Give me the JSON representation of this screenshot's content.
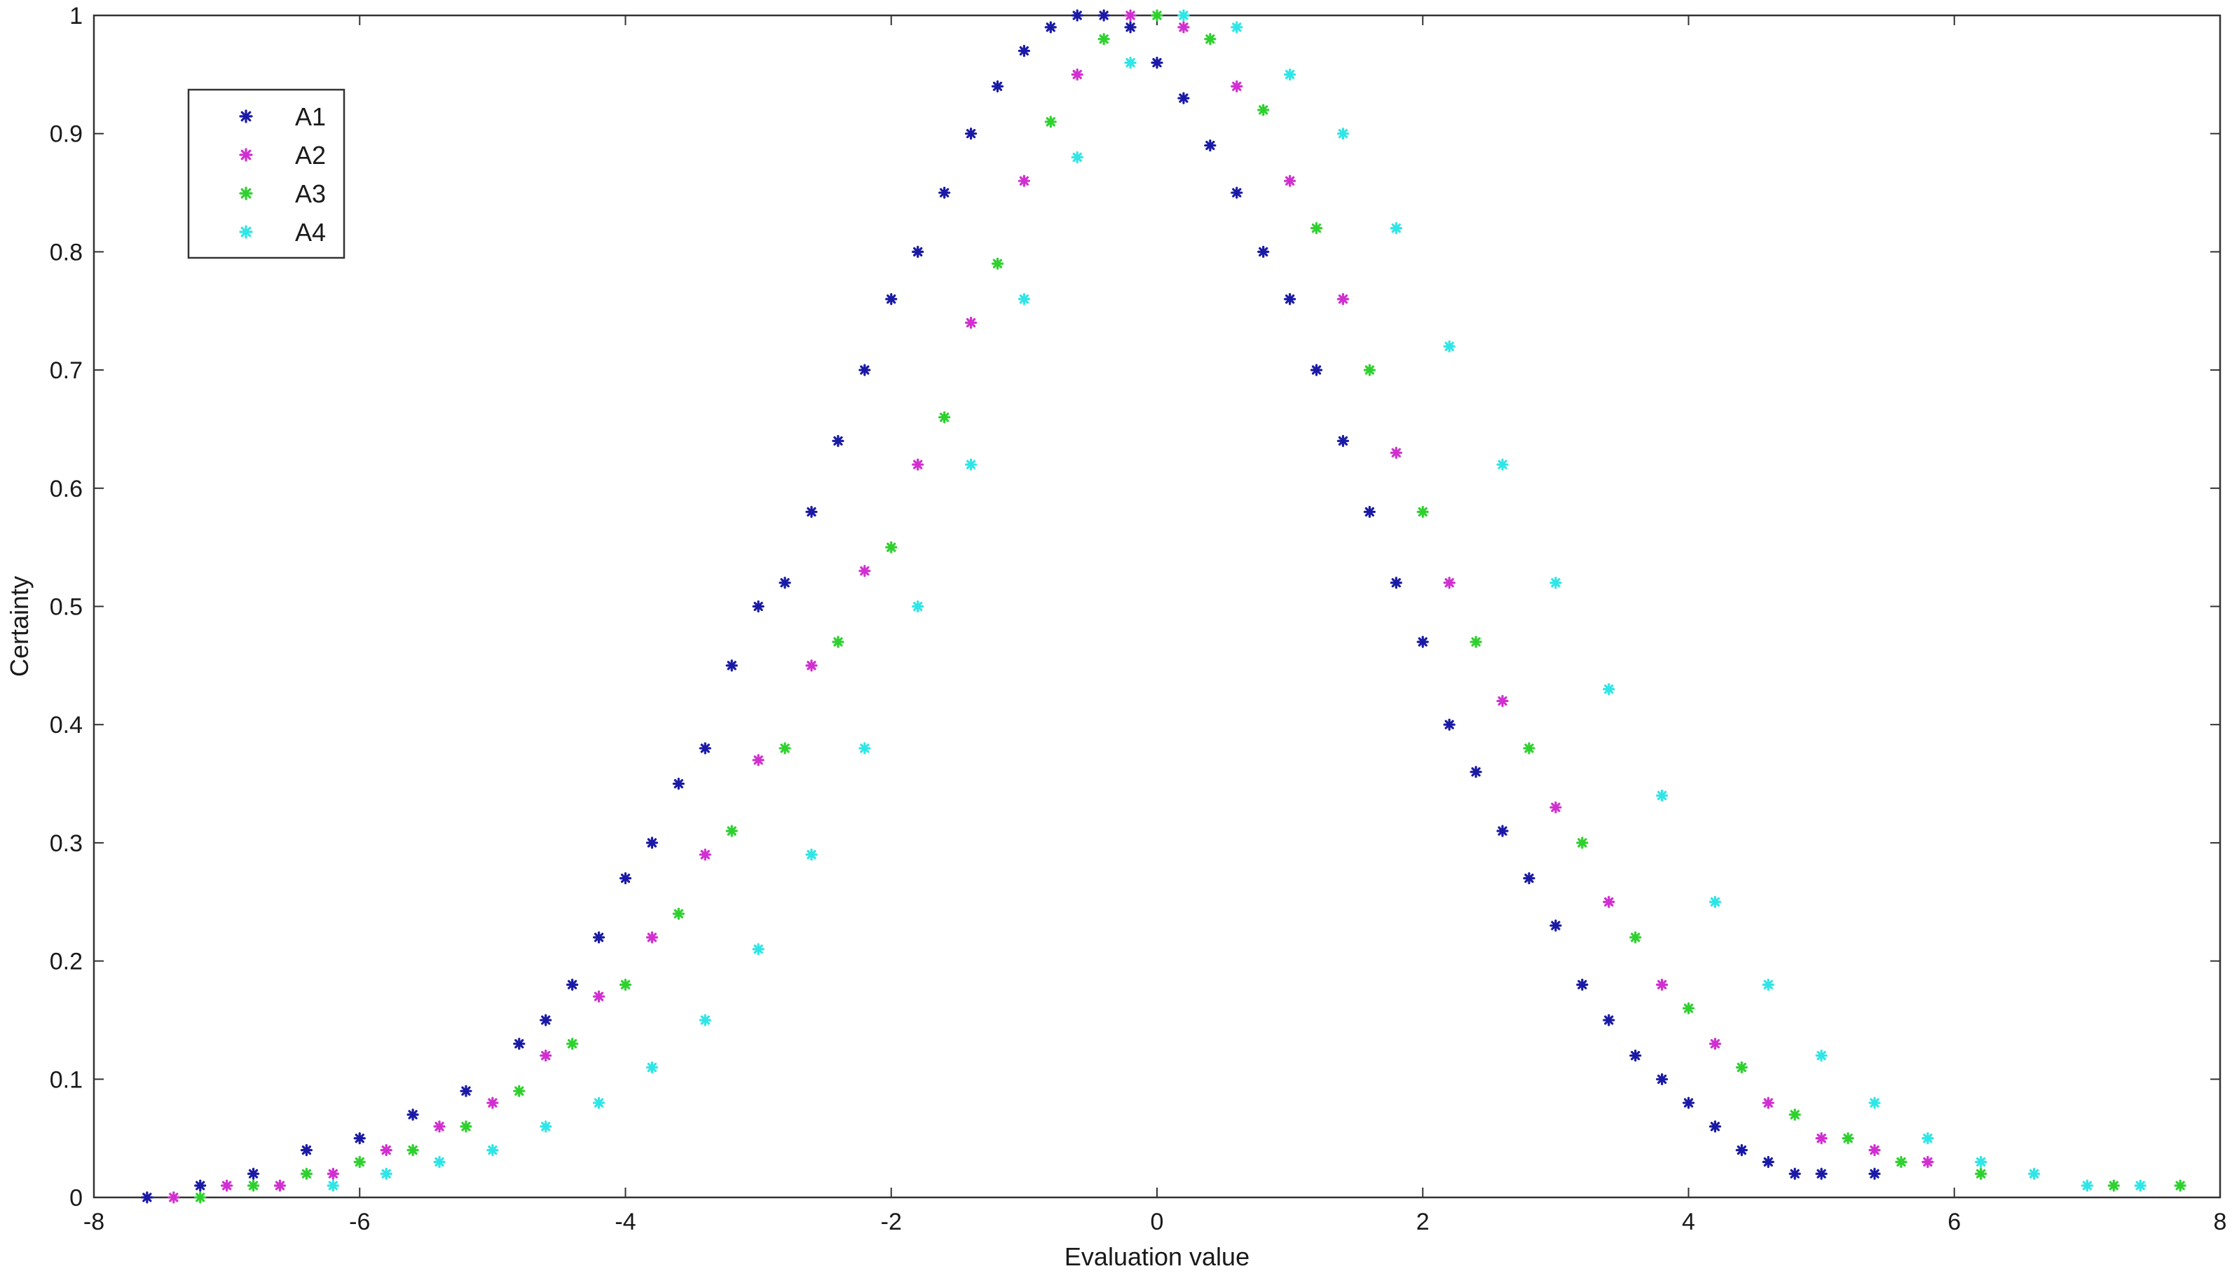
{
  "chart_data": {
    "type": "scatter",
    "title": "",
    "xlabel": "Evaluation value",
    "ylabel": "Certainty",
    "xlim": [
      -8,
      8
    ],
    "ylim": [
      0,
      1
    ],
    "xticks": [
      "-8",
      "-6",
      "-4",
      "-2",
      "0",
      "2",
      "4",
      "6",
      "8"
    ],
    "yticks": [
      "0",
      "0.1",
      "0.2",
      "0.3",
      "0.4",
      "0.5",
      "0.6",
      "0.7",
      "0.8",
      "0.9",
      "1"
    ],
    "grid": false,
    "legend_position": "top-left",
    "marker": "asterisk",
    "series": [
      {
        "name": "A1",
        "color": "#1a1aa6",
        "x": [
          -7.6,
          -7.2,
          -6.8,
          -6.4,
          -6.0,
          -5.6,
          -5.2,
          -4.8,
          -4.6,
          -4.4,
          -4.2,
          -4.0,
          -3.8,
          -3.6,
          -3.4,
          -3.2,
          -3.0,
          -2.8,
          -2.6,
          -2.4,
          -2.2,
          -2.0,
          -1.8,
          -1.6,
          -1.4,
          -1.2,
          -1.0,
          -0.8,
          -0.6,
          -0.4,
          -0.2,
          0.0,
          0.2,
          0.4,
          0.6,
          0.8,
          1.0,
          1.2,
          1.4,
          1.6,
          1.8,
          2.0,
          2.2,
          2.4,
          2.6,
          2.8,
          3.0,
          3.2,
          3.4,
          3.6,
          3.8,
          4.0,
          4.2,
          4.4,
          4.6,
          4.8,
          5.0,
          5.4
        ],
        "y": [
          0.0,
          0.01,
          0.02,
          0.04,
          0.05,
          0.07,
          0.09,
          0.13,
          0.15,
          0.18,
          0.22,
          0.27,
          0.3,
          0.35,
          0.38,
          0.45,
          0.5,
          0.52,
          0.58,
          0.64,
          0.7,
          0.76,
          0.8,
          0.85,
          0.9,
          0.94,
          0.97,
          0.99,
          1.0,
          1.0,
          0.99,
          0.96,
          0.93,
          0.89,
          0.85,
          0.8,
          0.76,
          0.7,
          0.64,
          0.58,
          0.52,
          0.47,
          0.4,
          0.36,
          0.31,
          0.27,
          0.23,
          0.18,
          0.15,
          0.12,
          0.1,
          0.08,
          0.06,
          0.04,
          0.03,
          0.02,
          0.02,
          0.02
        ]
      },
      {
        "name": "A2",
        "color": "#d12fd1",
        "x": [
          -7.4,
          -7.0,
          -6.6,
          -6.2,
          -5.8,
          -5.4,
          -5.0,
          -4.6,
          -4.2,
          -3.8,
          -3.4,
          -3.0,
          -2.6,
          -2.2,
          -1.8,
          -1.4,
          -1.0,
          -0.6,
          -0.2,
          0.2,
          0.6,
          1.0,
          1.4,
          1.8,
          2.2,
          2.6,
          3.0,
          3.4,
          3.8,
          4.2,
          4.6,
          5.0,
          5.4,
          5.8
        ],
        "y": [
          0.0,
          0.01,
          0.01,
          0.02,
          0.04,
          0.06,
          0.08,
          0.12,
          0.17,
          0.22,
          0.29,
          0.37,
          0.45,
          0.53,
          0.62,
          0.74,
          0.86,
          0.95,
          1.0,
          0.99,
          0.94,
          0.86,
          0.76,
          0.63,
          0.52,
          0.42,
          0.33,
          0.25,
          0.18,
          0.13,
          0.08,
          0.05,
          0.04,
          0.03
        ]
      },
      {
        "name": "A3",
        "color": "#2ed12e",
        "x": [
          -7.2,
          -6.8,
          -6.4,
          -6.0,
          -5.6,
          -5.2,
          -4.8,
          -4.4,
          -4.0,
          -3.6,
          -3.2,
          -2.8,
          -2.4,
          -2.0,
          -1.6,
          -1.2,
          -0.8,
          -0.4,
          0.0,
          0.4,
          0.8,
          1.2,
          1.6,
          2.0,
          2.4,
          2.8,
          3.2,
          3.6,
          4.0,
          4.4,
          4.8,
          5.2,
          5.6,
          6.2,
          7.2,
          7.7
        ],
        "y": [
          0.0,
          0.01,
          0.02,
          0.03,
          0.04,
          0.06,
          0.09,
          0.13,
          0.18,
          0.24,
          0.31,
          0.38,
          0.47,
          0.55,
          0.66,
          0.79,
          0.91,
          0.98,
          1.0,
          0.98,
          0.92,
          0.82,
          0.7,
          0.58,
          0.47,
          0.38,
          0.3,
          0.22,
          0.16,
          0.11,
          0.07,
          0.05,
          0.03,
          0.02,
          0.01,
          0.01
        ]
      },
      {
        "name": "A4",
        "color": "#2ee6e6",
        "x": [
          -6.2,
          -5.8,
          -5.4,
          -5.0,
          -4.6,
          -4.2,
          -3.8,
          -3.4,
          -3.0,
          -2.6,
          -2.2,
          -1.8,
          -1.4,
          -1.0,
          -0.6,
          -0.2,
          0.2,
          0.6,
          1.0,
          1.4,
          1.8,
          2.2,
          2.6,
          3.0,
          3.4,
          3.8,
          4.2,
          4.6,
          5.0,
          5.4,
          5.8,
          6.2,
          6.6,
          7.0,
          7.4
        ],
        "y": [
          0.01,
          0.02,
          0.03,
          0.04,
          0.06,
          0.08,
          0.11,
          0.15,
          0.21,
          0.29,
          0.38,
          0.5,
          0.62,
          0.76,
          0.88,
          0.96,
          1.0,
          0.99,
          0.95,
          0.9,
          0.82,
          0.72,
          0.62,
          0.52,
          0.43,
          0.34,
          0.25,
          0.18,
          0.12,
          0.08,
          0.05,
          0.03,
          0.02,
          0.01,
          0.01
        ]
      }
    ]
  }
}
